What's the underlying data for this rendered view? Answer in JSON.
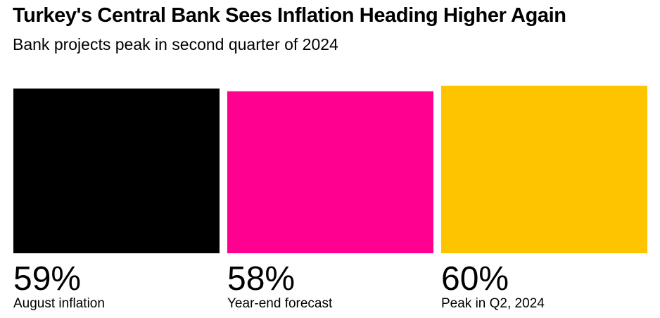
{
  "header": {
    "title": "Turkey's Central Bank Sees Inflation Heading Higher Again",
    "subtitle": "Bank projects peak in second quarter of 2024"
  },
  "chart_data": {
    "type": "bar",
    "title": "Turkey's Central Bank Sees Inflation Heading Higher Again",
    "subtitle": "Bank projects peak in second quarter of 2024",
    "categories": [
      "August inflation",
      "Year-end forecast",
      "Peak in Q2, 2024"
    ],
    "values": [
      59,
      58,
      60
    ],
    "value_labels": [
      "59%",
      "58%",
      "60%"
    ],
    "colors": [
      "#000000",
      "#ff0090",
      "#ffc400"
    ],
    "xlabel": "",
    "ylabel": "",
    "unit": "%",
    "grid": false,
    "legend": "none"
  }
}
